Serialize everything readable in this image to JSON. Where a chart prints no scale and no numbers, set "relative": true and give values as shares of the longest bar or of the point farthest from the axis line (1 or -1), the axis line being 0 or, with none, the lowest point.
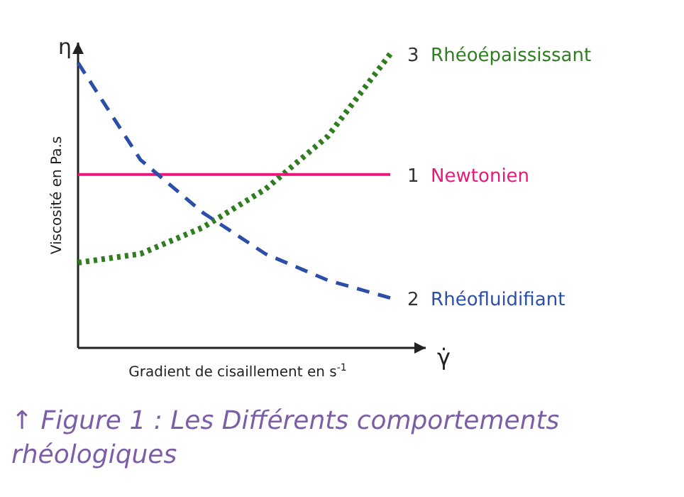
{
  "chart_data": {
    "type": "line",
    "relative": true,
    "categories": [
      null,
      null,
      null,
      null,
      null,
      null
    ],
    "xlabel": "Gradient de cisaillement en s$^{-1}$",
    "ylabel": "Viscosité en Pa.s",
    "series": [
      {
        "name": "3 Rhéoépaississant",
        "color": "#2e7d1f",
        "line_style": "dotted",
        "values": [
          0.29,
          0.32,
          0.41,
          0.54,
          0.72,
          1.0
        ]
      },
      {
        "name": "1 Newtonien",
        "color": "#e6197a",
        "line_style": "solid",
        "values": [
          0.59,
          0.59,
          0.59,
          0.59,
          0.59,
          0.59
        ]
      },
      {
        "name": "2 Rhéofluidifiant",
        "color": "#2b4fa8",
        "line_style": "dashed",
        "values": [
          0.97,
          0.64,
          0.46,
          0.32,
          0.23,
          0.17
        ]
      }
    ],
    "annotations": [
      "η",
      "γ̇",
      "↑ Figure 1 : Les Différents comportements rhéologiques"
    ],
    "marker": "none",
    "legend": false
  }
}
